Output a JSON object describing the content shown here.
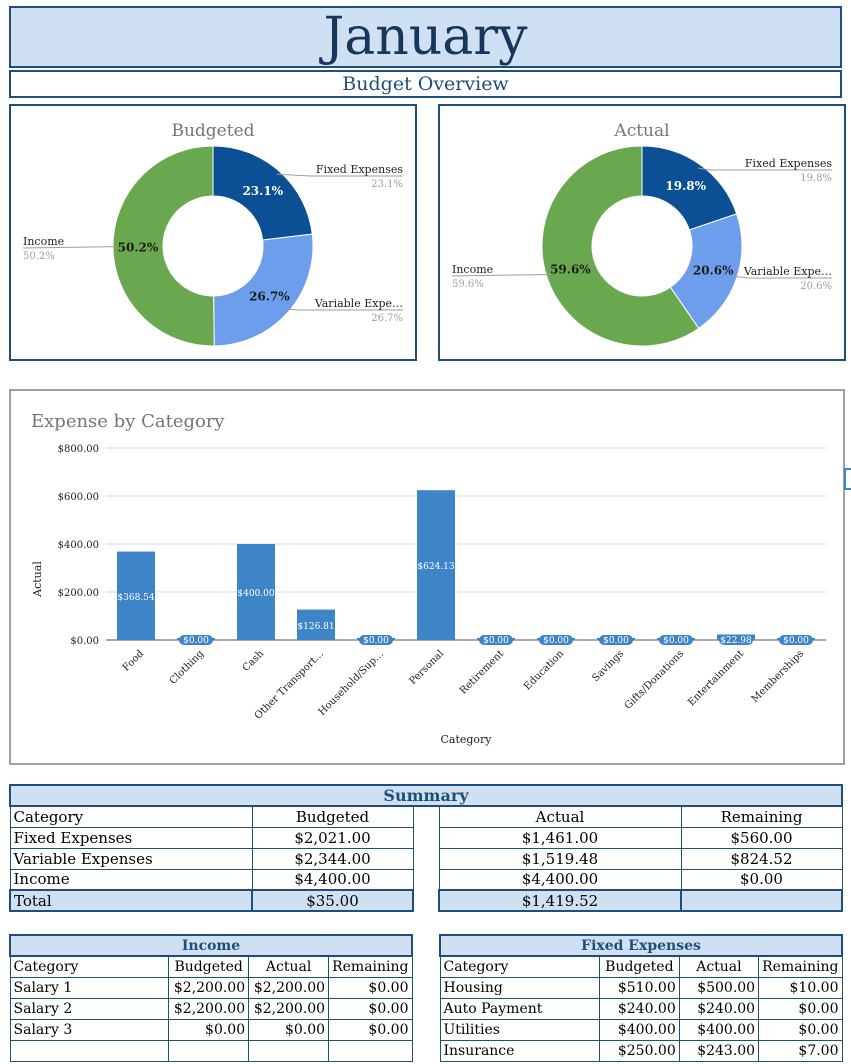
{
  "header": {
    "title": "January",
    "subtitle": "Budget Overview"
  },
  "pie_budgeted": {
    "title": "Budgeted",
    "slices": [
      {
        "name": "Fixed Expenses",
        "label_short": "Fixed Expenses",
        "value": 23.1,
        "pct": "23.1%",
        "color": "#0b4f94"
      },
      {
        "name": "Variable Expenses",
        "label_short": "Variable Expe…",
        "value": 26.7,
        "pct": "26.7%",
        "color": "#6d9eeb"
      },
      {
        "name": "Income",
        "label_short": "Income",
        "value": 50.2,
        "pct": "50.2%",
        "color": "#6aa84f"
      }
    ]
  },
  "pie_actual": {
    "title": "Actual",
    "slices": [
      {
        "name": "Fixed Expenses",
        "label_short": "Fixed Expenses",
        "value": 19.8,
        "pct": "19.8%",
        "color": "#0b4f94"
      },
      {
        "name": "Variable Expenses",
        "label_short": "Variable Expe…",
        "value": 20.6,
        "pct": "20.6%",
        "color": "#6d9eeb"
      },
      {
        "name": "Income",
        "label_short": "Income",
        "value": 59.6,
        "pct": "59.6%",
        "color": "#6aa84f"
      }
    ]
  },
  "chart_data": [
    {
      "type": "pie",
      "title": "Budgeted",
      "categories": [
        "Fixed Expenses",
        "Variable Expenses",
        "Income"
      ],
      "values": [
        23.1,
        26.7,
        50.2
      ]
    },
    {
      "type": "pie",
      "title": "Actual",
      "categories": [
        "Fixed Expenses",
        "Variable Expenses",
        "Income"
      ],
      "values": [
        19.8,
        20.6,
        59.6
      ]
    },
    {
      "type": "bar",
      "title": "Expense by Category",
      "xlabel": "Category",
      "ylabel": "Actual",
      "ylim": [
        0,
        800
      ],
      "yticks": [
        "$0.00",
        "$200.00",
        "$400.00",
        "$600.00",
        "$800.00"
      ],
      "categories": [
        "Food",
        "Clothing",
        "Cash",
        "Other Transport…",
        "Household/Sup…",
        "Personal",
        "Retirement",
        "Education",
        "Savings",
        "Gifts/Donations",
        "Entertainment",
        "Memberships"
      ],
      "values": [
        368.54,
        0,
        400.0,
        126.81,
        0,
        624.13,
        0,
        0,
        0,
        0,
        22.98,
        0
      ],
      "value_labels": [
        "$368.54",
        "$0.00",
        "$400.00",
        "$126.81",
        "$0.00",
        "$624.13",
        "$0.00",
        "$0.00",
        "$0.00",
        "$0.00",
        "$22.98",
        "$0.00"
      ],
      "bar_color": "#3d85c6"
    }
  ],
  "summary": {
    "title": "Summary",
    "headers": [
      "Category",
      "Budgeted",
      "Actual",
      "Remaining"
    ],
    "rows": [
      {
        "category": "Fixed Expenses",
        "budgeted": "$2,021.00",
        "actual": "$1,461.00",
        "remaining": "$560.00"
      },
      {
        "category": "Variable Expenses",
        "budgeted": "$2,344.00",
        "actual": "$1,519.48",
        "remaining": "$824.52"
      },
      {
        "category": "Income",
        "budgeted": "$4,400.00",
        "actual": "$4,400.00",
        "remaining": "$0.00"
      }
    ],
    "total": {
      "category": "Total",
      "budgeted": "$35.00",
      "actual": "$1,419.52",
      "remaining": ""
    }
  },
  "income": {
    "title": "Income",
    "headers": [
      "Category",
      "Budgeted",
      "Actual",
      "Remaining"
    ],
    "rows": [
      {
        "category": "Salary 1",
        "budgeted": "$2,200.00",
        "actual": "$2,200.00",
        "remaining": "$0.00"
      },
      {
        "category": "Salary 2",
        "budgeted": "$2,200.00",
        "actual": "$2,200.00",
        "remaining": "$0.00"
      },
      {
        "category": "Salary 3",
        "budgeted": "$0.00",
        "actual": "$0.00",
        "remaining": "$0.00"
      }
    ]
  },
  "fixed": {
    "title": "Fixed Expenses",
    "headers": [
      "Category",
      "Budgeted",
      "Actual",
      "Remaining"
    ],
    "rows": [
      {
        "category": "Housing",
        "budgeted": "$510.00",
        "actual": "$500.00",
        "remaining": "$10.00"
      },
      {
        "category": "Auto Payment",
        "budgeted": "$240.00",
        "actual": "$240.00",
        "remaining": "$0.00"
      },
      {
        "category": "Utilities",
        "budgeted": "$400.00",
        "actual": "$400.00",
        "remaining": "$0.00"
      },
      {
        "category": "Insurance",
        "budgeted": "$250.00",
        "actual": "$243.00",
        "remaining": "$7.00"
      }
    ]
  }
}
